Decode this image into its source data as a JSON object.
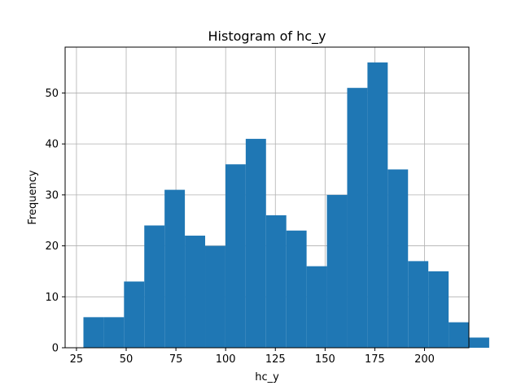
{
  "chart_data": {
    "type": "bar",
    "subtype": "histogram",
    "title": "Histogram of hc_y",
    "xlabel": "hc_y",
    "ylabel": "Frequency",
    "bins": [
      {
        "start": 28.5,
        "end": 38.7,
        "count": 6
      },
      {
        "start": 38.7,
        "end": 48.9,
        "count": 6
      },
      {
        "start": 48.9,
        "end": 59.1,
        "count": 13
      },
      {
        "start": 59.1,
        "end": 69.3,
        "count": 24
      },
      {
        "start": 69.3,
        "end": 79.5,
        "count": 31
      },
      {
        "start": 79.5,
        "end": 89.7,
        "count": 22
      },
      {
        "start": 89.7,
        "end": 99.9,
        "count": 20
      },
      {
        "start": 99.9,
        "end": 110.1,
        "count": 36
      },
      {
        "start": 110.1,
        "end": 120.3,
        "count": 41
      },
      {
        "start": 120.3,
        "end": 130.5,
        "count": 26
      },
      {
        "start": 130.5,
        "end": 140.7,
        "count": 23
      },
      {
        "start": 140.7,
        "end": 150.9,
        "count": 16
      },
      {
        "start": 150.9,
        "end": 161.1,
        "count": 30
      },
      {
        "start": 161.1,
        "end": 171.3,
        "count": 51
      },
      {
        "start": 171.3,
        "end": 181.5,
        "count": 56
      },
      {
        "start": 181.5,
        "end": 191.7,
        "count": 35
      },
      {
        "start": 191.7,
        "end": 201.9,
        "count": 17
      },
      {
        "start": 201.9,
        "end": 212.1,
        "count": 15
      },
      {
        "start": 212.1,
        "end": 222.3,
        "count": 5
      },
      {
        "start": 222.3,
        "end": 232.5,
        "count": 2
      }
    ],
    "xlim": [
      19.3,
      222.3
    ],
    "ylim": [
      0,
      59
    ],
    "xticks": [
      25,
      50,
      75,
      100,
      125,
      150,
      175,
      200
    ],
    "yticks": [
      0,
      10,
      20,
      30,
      40,
      50
    ],
    "grid": true,
    "bar_color": "#1f77b4",
    "grid_color": "#b0b0b0"
  }
}
